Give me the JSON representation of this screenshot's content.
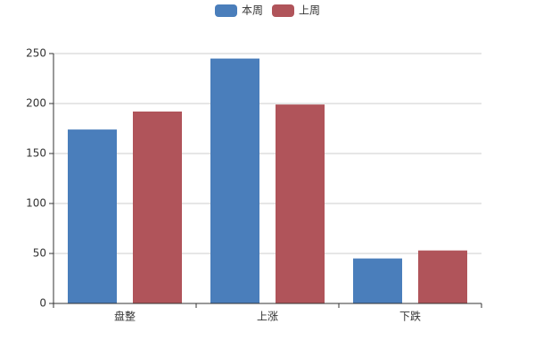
{
  "chart_data": {
    "type": "bar",
    "categories": [
      "盘整",
      "上涨",
      "下跌"
    ],
    "series": [
      {
        "name": "本周",
        "color": "#4a7ebb",
        "values": [
          174,
          245,
          45
        ]
      },
      {
        "name": "上周",
        "color": "#b0545a",
        "values": [
          192,
          199,
          53
        ]
      }
    ],
    "ylim": [
      0,
      250
    ],
    "yticks": [
      0,
      50,
      100,
      150,
      200,
      250
    ],
    "grid": true,
    "legend": "top"
  }
}
